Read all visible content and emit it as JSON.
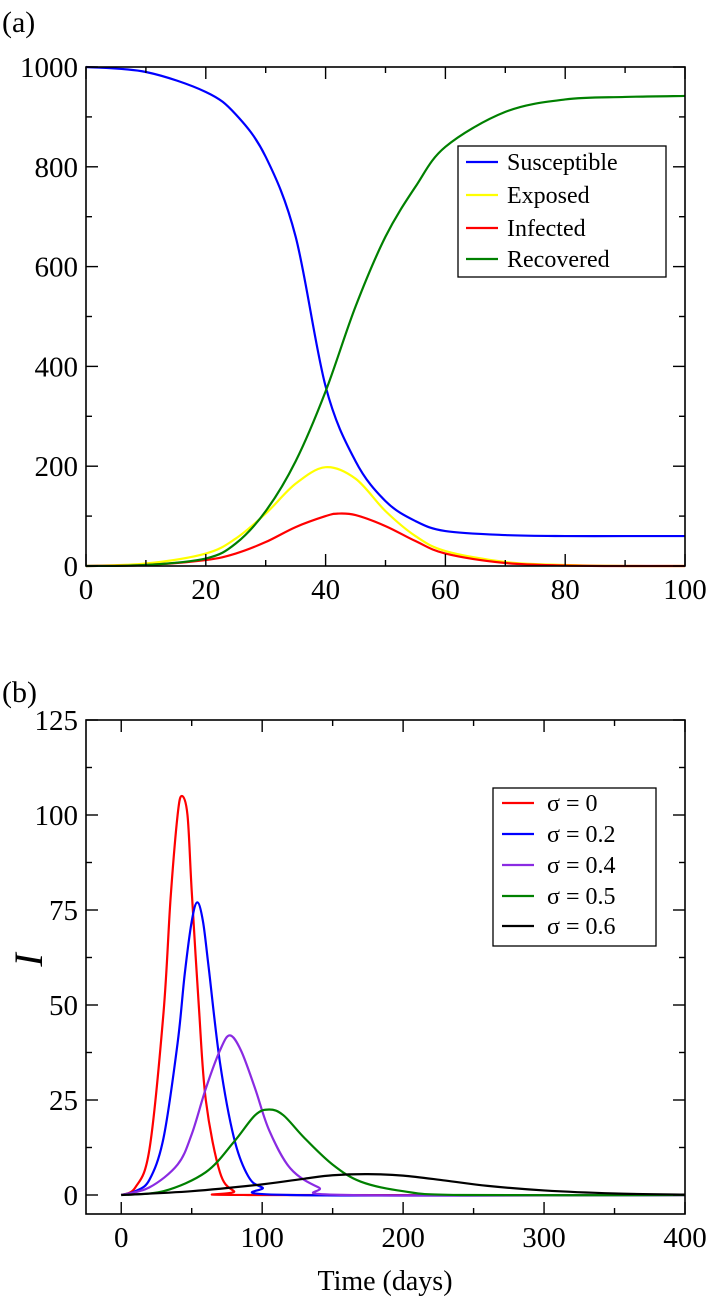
{
  "chart_data": [
    {
      "panel_label": "(a)",
      "type": "line",
      "title": "",
      "xlabel": "",
      "ylabel": "",
      "xlim": [
        0,
        100
      ],
      "ylim": [
        0,
        1000
      ],
      "xticks": [
        0,
        20,
        40,
        60,
        80,
        100
      ],
      "yticks": [
        0,
        200,
        400,
        600,
        800,
        1000
      ],
      "xtick_labels": [
        "0",
        "20",
        "40",
        "60",
        "80",
        "100"
      ],
      "ytick_labels": [
        "0",
        "200",
        "400",
        "600",
        "800",
        "1000"
      ],
      "legend_position": "top-right",
      "series": [
        {
          "name": "Susceptible",
          "color": "#0000ff",
          "x": [
            0,
            10,
            20,
            25,
            30,
            35,
            40,
            45,
            50,
            55,
            60,
            70,
            80,
            90,
            100
          ],
          "y": [
            1000,
            990,
            950,
            905,
            820,
            660,
            360,
            210,
            130,
            90,
            70,
            62,
            60,
            60,
            60
          ]
        },
        {
          "name": "Exposed",
          "color": "#ffff00",
          "x": [
            0,
            10,
            20,
            25,
            30,
            35,
            40,
            45,
            50,
            55,
            60,
            70,
            80,
            90,
            100
          ],
          "y": [
            0,
            5,
            25,
            55,
            105,
            165,
            198,
            175,
            110,
            60,
            30,
            8,
            2,
            0,
            0
          ]
        },
        {
          "name": "Infected",
          "color": "#ff0000",
          "x": [
            0,
            10,
            20,
            25,
            30,
            35,
            40,
            42,
            45,
            50,
            55,
            60,
            70,
            80,
            90,
            100
          ],
          "y": [
            0,
            2,
            12,
            25,
            48,
            78,
            100,
            105,
            102,
            80,
            50,
            25,
            6,
            1,
            0,
            0
          ]
        },
        {
          "name": "Recovered",
          "color": "#008000",
          "x": [
            0,
            10,
            20,
            25,
            30,
            35,
            40,
            45,
            50,
            55,
            60,
            70,
            80,
            90,
            100
          ],
          "y": [
            0,
            2,
            15,
            45,
            110,
            210,
            350,
            520,
            660,
            760,
            840,
            910,
            935,
            940,
            942
          ]
        }
      ]
    },
    {
      "panel_label": "(b)",
      "type": "line",
      "title": "",
      "xlabel": "Time (days)",
      "ylabel": "I",
      "xlim": [
        -25,
        400
      ],
      "ylim": [
        -5,
        125
      ],
      "xticks": [
        0,
        100,
        200,
        300,
        400
      ],
      "yticks": [
        0,
        25,
        50,
        75,
        100,
        125
      ],
      "xtick_labels": [
        "0",
        "100",
        "200",
        "300",
        "400"
      ],
      "ytick_labels": [
        "0",
        "25",
        "50",
        "75",
        "100",
        "125"
      ],
      "legend_position": "top-right",
      "series": [
        {
          "name": "σ = 0",
          "color": "#ff0000",
          "x": [
            0,
            10,
            20,
            30,
            35,
            40,
            43,
            47,
            50,
            55,
            60,
            70,
            80,
            90,
            400
          ],
          "y": [
            0,
            2,
            12,
            48,
            78,
            100,
            105,
            100,
            80,
            50,
            25,
            6,
            1,
            0,
            0
          ]
        },
        {
          "name": "σ = 0.2",
          "color": "#0000ff",
          "x": [
            0,
            10,
            20,
            30,
            40,
            45,
            50,
            54,
            58,
            62,
            70,
            80,
            90,
            100,
            120,
            400
          ],
          "y": [
            0,
            1,
            4,
            15,
            40,
            58,
            72,
            77,
            72,
            60,
            35,
            15,
            5,
            2,
            0,
            0
          ]
        },
        {
          "name": "σ = 0.4",
          "color": "#8a2be2",
          "x": [
            0,
            20,
            40,
            50,
            60,
            70,
            77,
            85,
            95,
            105,
            120,
            140,
            160,
            400
          ],
          "y": [
            0,
            2,
            8,
            16,
            28,
            38,
            42,
            38,
            28,
            17,
            7,
            2,
            0,
            0
          ]
        },
        {
          "name": "σ = 0.5",
          "color": "#008000",
          "x": [
            0,
            30,
            60,
            80,
            95,
            105,
            115,
            130,
            150,
            170,
            200,
            240,
            400
          ],
          "y": [
            0,
            1,
            6,
            14,
            21,
            22.5,
            21,
            15,
            8,
            3.5,
            1,
            0,
            0
          ]
        },
        {
          "name": "σ = 0.6",
          "color": "#000000",
          "x": [
            0,
            50,
            100,
            130,
            150,
            175,
            200,
            230,
            260,
            300,
            350,
            400
          ],
          "y": [
            0,
            1,
            2.8,
            4.3,
            5.2,
            5.5,
            5.1,
            3.8,
            2.4,
            1.2,
            0.4,
            0.1
          ]
        }
      ]
    }
  ]
}
